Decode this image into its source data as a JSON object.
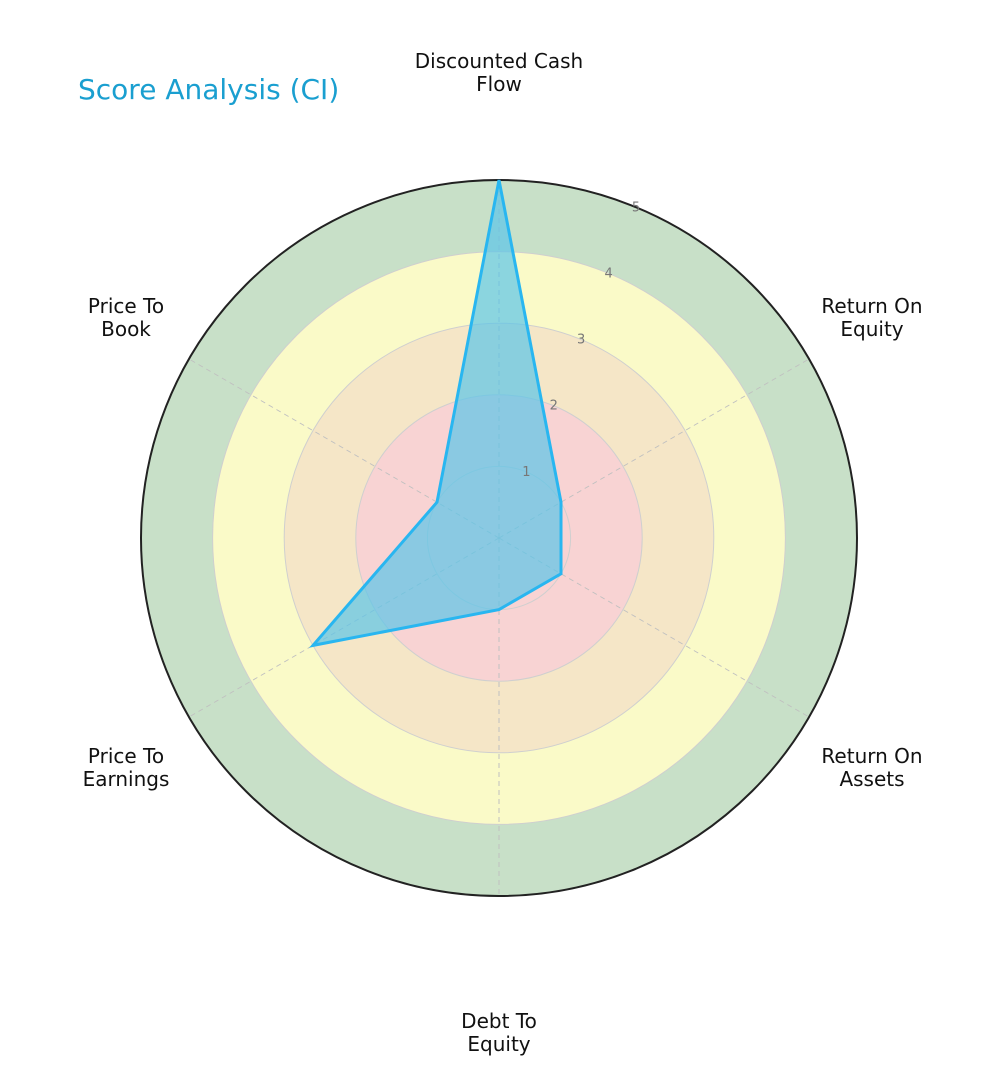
{
  "chart_data": {
    "type": "radar",
    "title": "Score Analysis (CI)",
    "axes": [
      [
        "Discounted Cash",
        "Flow"
      ],
      [
        "Return On",
        "Equity"
      ],
      [
        "Return On",
        "Assets"
      ],
      [
        "Debt To",
        "Equity"
      ],
      [
        "Price To",
        "Earnings"
      ],
      [
        "Price To",
        "Book"
      ]
    ],
    "values": [
      5,
      1,
      1,
      1,
      3,
      1
    ],
    "rlim": [
      0,
      5
    ],
    "rticks": [
      1,
      2,
      3,
      4,
      5
    ],
    "band_colors": [
      "#f8d3d3",
      "#f8d3d3",
      "#f5e6c7",
      "#fafac8",
      "#c8e0c8"
    ],
    "outline_color": "#222222",
    "series_color": "#29b6f0",
    "fill_color": "#5bc4e8",
    "grid": true
  }
}
